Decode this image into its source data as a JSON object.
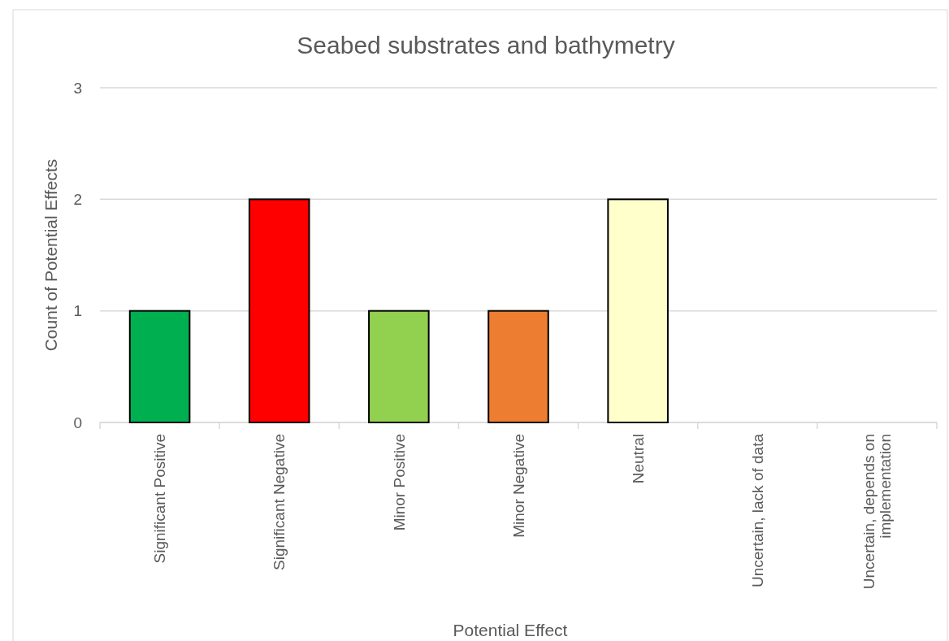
{
  "chart_data": {
    "type": "bar",
    "title": "Seabed substrates and bathymetry",
    "xlabel": "Potential Effect",
    "ylabel": "Count of Potential Effects",
    "categories": [
      "Significant Positive",
      "Significant Negative",
      "Minor Positive",
      "Minor Negative",
      "Neutral",
      "Uncertain, lack of data",
      "Uncertain, depends on implementation"
    ],
    "values": [
      1,
      2,
      1,
      1,
      2,
      0,
      0
    ],
    "colors": [
      "#00b050",
      "#ff0000",
      "#92d050",
      "#ed7d31",
      "#ffffcc",
      "#ffffff",
      "#ffffff"
    ],
    "ylim": [
      0,
      3
    ],
    "yticks": [
      0,
      1,
      2,
      3
    ],
    "grid": "y"
  }
}
